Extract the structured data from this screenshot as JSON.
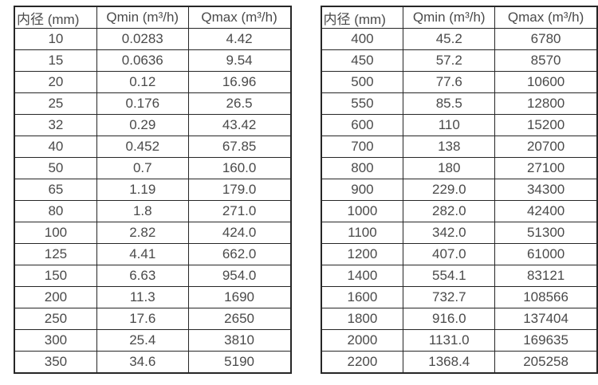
{
  "page": {
    "background_color": "#ffffff",
    "border_color": "#262626",
    "text_color": "#4a4a4a"
  },
  "tables": [
    {
      "name": "flow-rate-table-small-diameters",
      "headers": [
        "内径 (mm)",
        "Qmin (m³/h)",
        "Qmax (m³/h)"
      ],
      "rows": [
        [
          "10",
          "0.0283",
          "4.42"
        ],
        [
          "15",
          "0.0636",
          "9.54"
        ],
        [
          "20",
          "0.12",
          "16.96"
        ],
        [
          "25",
          "0.176",
          "26.5"
        ],
        [
          "32",
          "0.29",
          "43.42"
        ],
        [
          "40",
          "0.452",
          "67.85"
        ],
        [
          "50",
          "0.7",
          "160.0"
        ],
        [
          "65",
          "1.19",
          "179.0"
        ],
        [
          "80",
          "1.8",
          "271.0"
        ],
        [
          "100",
          "2.82",
          "424.0"
        ],
        [
          "125",
          "4.41",
          "662.0"
        ],
        [
          "150",
          "6.63",
          "954.0"
        ],
        [
          "200",
          "11.3",
          "1690"
        ],
        [
          "250",
          "17.6",
          "2650"
        ],
        [
          "300",
          "25.4",
          "3810"
        ],
        [
          "350",
          "34.6",
          "5190"
        ]
      ]
    },
    {
      "name": "flow-rate-table-large-diameters",
      "headers": [
        "内径 (mm)",
        "Qmin (m³/h)",
        "Qmax (m³/h)"
      ],
      "rows": [
        [
          "400",
          "45.2",
          "6780"
        ],
        [
          "450",
          "57.2",
          "8570"
        ],
        [
          "500",
          "77.6",
          "10600"
        ],
        [
          "550",
          "85.5",
          "12800"
        ],
        [
          "600",
          "110",
          "15200"
        ],
        [
          "700",
          "138",
          "20700"
        ],
        [
          "800",
          "180",
          "27100"
        ],
        [
          "900",
          "229.0",
          "34300"
        ],
        [
          "1000",
          "282.0",
          "42400"
        ],
        [
          "1100",
          "342.0",
          "51300"
        ],
        [
          "1200",
          "407.0",
          "61000"
        ],
        [
          "1400",
          "554.1",
          "83121"
        ],
        [
          "1600",
          "732.7",
          "108566"
        ],
        [
          "1800",
          "916.0",
          "137404"
        ],
        [
          "2000",
          "1131.0",
          "169635"
        ],
        [
          "2200",
          "1368.4",
          "205258"
        ]
      ]
    }
  ]
}
